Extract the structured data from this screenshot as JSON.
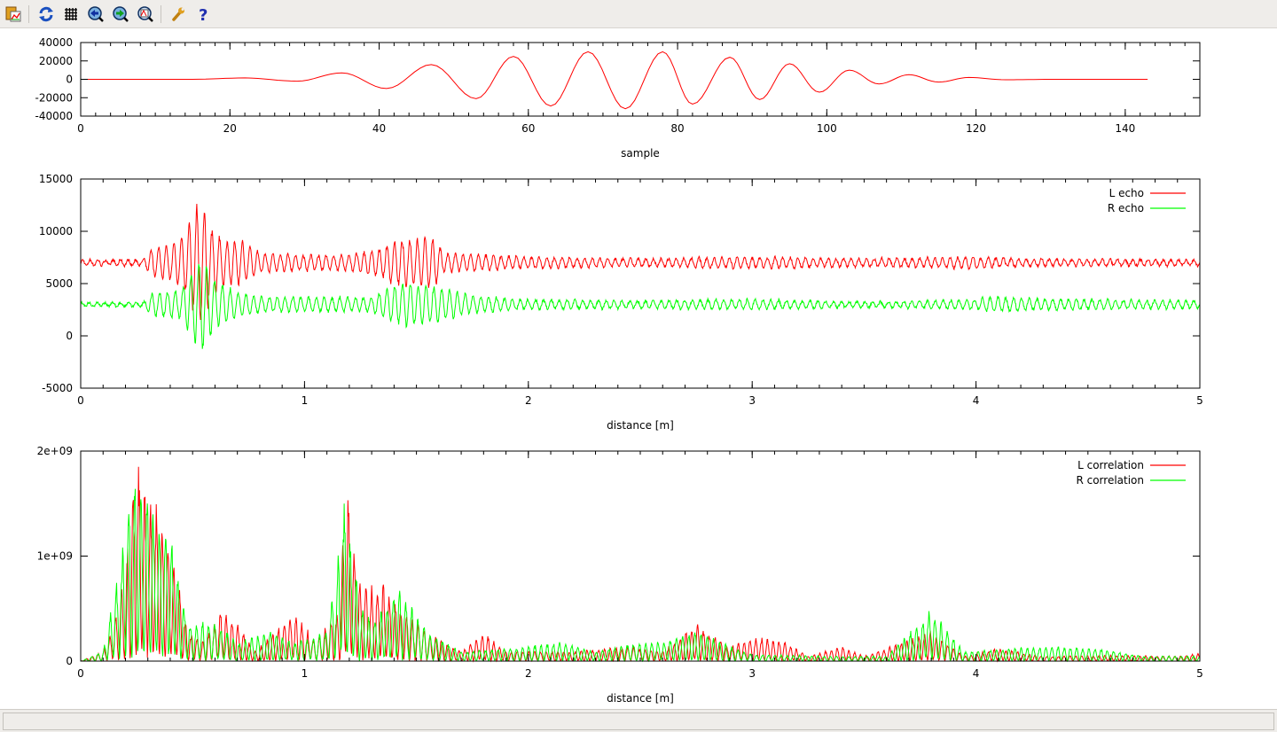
{
  "toolbar": {
    "icons": [
      "copy-to-clipboard-icon",
      "replot-icon",
      "grid-icon",
      "zoom-previous-icon",
      "zoom-next-icon",
      "autoscale-icon",
      "options-icon",
      "help-icon"
    ]
  },
  "colors": {
    "l": "#ff0000",
    "r": "#00ff00",
    "axis": "#000000"
  },
  "status": {
    "text": ""
  },
  "chart_data": [
    {
      "type": "line",
      "xlabel": "sample",
      "xlim": [
        0,
        150
      ],
      "ylim": [
        -40000,
        40000
      ],
      "xticks": [
        "0",
        "20",
        "40",
        "60",
        "80",
        "100",
        "120",
        "140"
      ],
      "yticks": [
        "-40000",
        "-20000",
        "0",
        "20000",
        "40000"
      ],
      "series": [
        {
          "color": "#ff0000",
          "points": [
            [
              0,
              0
            ],
            [
              15,
              0
            ],
            [
              22,
              1500
            ],
            [
              29,
              -2000
            ],
            [
              35,
              7000
            ],
            [
              41,
              -10000
            ],
            [
              47,
              16000
            ],
            [
              53,
              -21000
            ],
            [
              58,
              25000
            ],
            [
              63,
              -29000
            ],
            [
              68,
              30000
            ],
            [
              73,
              -32000
            ],
            [
              78,
              30000
            ],
            [
              82,
              -27000
            ],
            [
              87,
              24000
            ],
            [
              91,
              -22000
            ],
            [
              95,
              17000
            ],
            [
              99,
              -14000
            ],
            [
              103,
              10000
            ],
            [
              107,
              -5000
            ],
            [
              111,
              5000
            ],
            [
              115,
              -3000
            ],
            [
              119,
              2000
            ],
            [
              124,
              -500
            ],
            [
              130,
              0
            ],
            [
              143,
              0
            ]
          ]
        }
      ]
    },
    {
      "type": "line",
      "xlabel": "distance [m]",
      "xlim": [
        0,
        5
      ],
      "ylim": [
        -5000,
        15000
      ],
      "xticks": [
        "0",
        "1",
        "2",
        "3",
        "4",
        "5"
      ],
      "yticks": [
        "-5000",
        "0",
        "5000",
        "10000",
        "15000"
      ],
      "legend_position": "top-right",
      "series": [
        {
          "name": "L echo",
          "color": "#ff0000",
          "baseline": 7000,
          "envelope": [
            [
              0,
              300
            ],
            [
              0.28,
              300
            ],
            [
              0.32,
              1500
            ],
            [
              0.4,
              1700
            ],
            [
              0.47,
              3000
            ],
            [
              0.5,
              5000
            ],
            [
              0.54,
              6500
            ],
            [
              0.58,
              3500
            ],
            [
              0.65,
              2200
            ],
            [
              0.72,
              2200
            ],
            [
              0.8,
              1000
            ],
            [
              1.0,
              800
            ],
            [
              1.2,
              800
            ],
            [
              1.35,
              1500
            ],
            [
              1.4,
              2300
            ],
            [
              1.58,
              2600
            ],
            [
              1.62,
              1000
            ],
            [
              1.8,
              800
            ],
            [
              2.0,
              600
            ],
            [
              2.5,
              400
            ],
            [
              3.0,
              600
            ],
            [
              3.5,
              400
            ],
            [
              4.0,
              600
            ],
            [
              4.2,
              400
            ],
            [
              5,
              300
            ]
          ]
        },
        {
          "name": "R echo",
          "color": "#00ff00",
          "baseline": 3000,
          "envelope": [
            [
              0,
              200
            ],
            [
              0.28,
              200
            ],
            [
              0.32,
              1200
            ],
            [
              0.45,
              1500
            ],
            [
              0.5,
              3500
            ],
            [
              0.54,
              5000
            ],
            [
              0.6,
              2500
            ],
            [
              0.7,
              1300
            ],
            [
              0.8,
              800
            ],
            [
              1.3,
              700
            ],
            [
              1.35,
              1500
            ],
            [
              1.45,
              2300
            ],
            [
              1.6,
              1800
            ],
            [
              1.75,
              900
            ],
            [
              2.0,
              500
            ],
            [
              2.5,
              400
            ],
            [
              3.0,
              500
            ],
            [
              3.5,
              300
            ],
            [
              4.0,
              500
            ],
            [
              4.05,
              800
            ],
            [
              4.2,
              600
            ],
            [
              5,
              400
            ]
          ]
        }
      ]
    },
    {
      "type": "line",
      "xlabel": "distance [m]",
      "xlim": [
        0,
        5
      ],
      "ylim": [
        0,
        2000000000
      ],
      "xticks": [
        "0",
        "1",
        "2",
        "3",
        "4",
        "5"
      ],
      "yticks": [
        "0",
        "1e+09",
        "2e+09"
      ],
      "legend_position": "top-right",
      "series": [
        {
          "name": "L correlation",
          "color": "#ff0000",
          "envelope": [
            [
              0,
              0
            ],
            [
              0.1,
              100000000
            ],
            [
              0.15,
              400000000
            ],
            [
              0.2,
              900000000
            ],
            [
              0.24,
              2000000000
            ],
            [
              0.3,
              1800000000
            ],
            [
              0.35,
              1500000000
            ],
            [
              0.42,
              1000000000
            ],
            [
              0.48,
              300000000
            ],
            [
              0.55,
              200000000
            ],
            [
              0.62,
              500000000
            ],
            [
              0.7,
              400000000
            ],
            [
              0.78,
              100000000
            ],
            [
              0.95,
              500000000
            ],
            [
              1.05,
              200000000
            ],
            [
              1.15,
              500000000
            ],
            [
              1.19,
              1800000000
            ],
            [
              1.25,
              800000000
            ],
            [
              1.35,
              800000000
            ],
            [
              1.45,
              500000000
            ],
            [
              1.55,
              300000000
            ],
            [
              1.7,
              100000000
            ],
            [
              1.8,
              300000000
            ],
            [
              1.9,
              100000000
            ],
            [
              2.2,
              100000000
            ],
            [
              2.45,
              150000000
            ],
            [
              2.6,
              100000000
            ],
            [
              2.75,
              380000000
            ],
            [
              2.9,
              150000000
            ],
            [
              3.0,
              250000000
            ],
            [
              3.15,
              200000000
            ],
            [
              3.25,
              50000000
            ],
            [
              3.4,
              150000000
            ],
            [
              3.5,
              50000000
            ],
            [
              3.8,
              300000000
            ],
            [
              3.95,
              50000000
            ],
            [
              4.1,
              130000000
            ],
            [
              4.3,
              50000000
            ],
            [
              4.6,
              60000000
            ],
            [
              4.9,
              50000000
            ],
            [
              5,
              80000000
            ]
          ]
        },
        {
          "name": "R correlation",
          "color": "#00ff00",
          "envelope": [
            [
              0,
              0
            ],
            [
              0.1,
              100000000
            ],
            [
              0.15,
              700000000
            ],
            [
              0.23,
              1800000000
            ],
            [
              0.3,
              1700000000
            ],
            [
              0.4,
              1300000000
            ],
            [
              0.48,
              400000000
            ],
            [
              0.6,
              400000000
            ],
            [
              0.7,
              200000000
            ],
            [
              0.85,
              300000000
            ],
            [
              0.95,
              200000000
            ],
            [
              1.1,
              300000000
            ],
            [
              1.18,
              1600000000
            ],
            [
              1.25,
              600000000
            ],
            [
              1.3,
              400000000
            ],
            [
              1.42,
              750000000
            ],
            [
              1.55,
              300000000
            ],
            [
              1.7,
              100000000
            ],
            [
              2.0,
              150000000
            ],
            [
              2.15,
              200000000
            ],
            [
              2.3,
              100000000
            ],
            [
              2.45,
              180000000
            ],
            [
              2.6,
              200000000
            ],
            [
              2.75,
              300000000
            ],
            [
              2.9,
              150000000
            ],
            [
              3.0,
              70000000
            ],
            [
              3.4,
              50000000
            ],
            [
              3.6,
              50000000
            ],
            [
              3.8,
              520000000
            ],
            [
              3.95,
              100000000
            ],
            [
              4.1,
              120000000
            ],
            [
              4.3,
              150000000
            ],
            [
              4.55,
              130000000
            ],
            [
              4.75,
              50000000
            ],
            [
              5,
              50000000
            ]
          ]
        }
      ]
    }
  ]
}
